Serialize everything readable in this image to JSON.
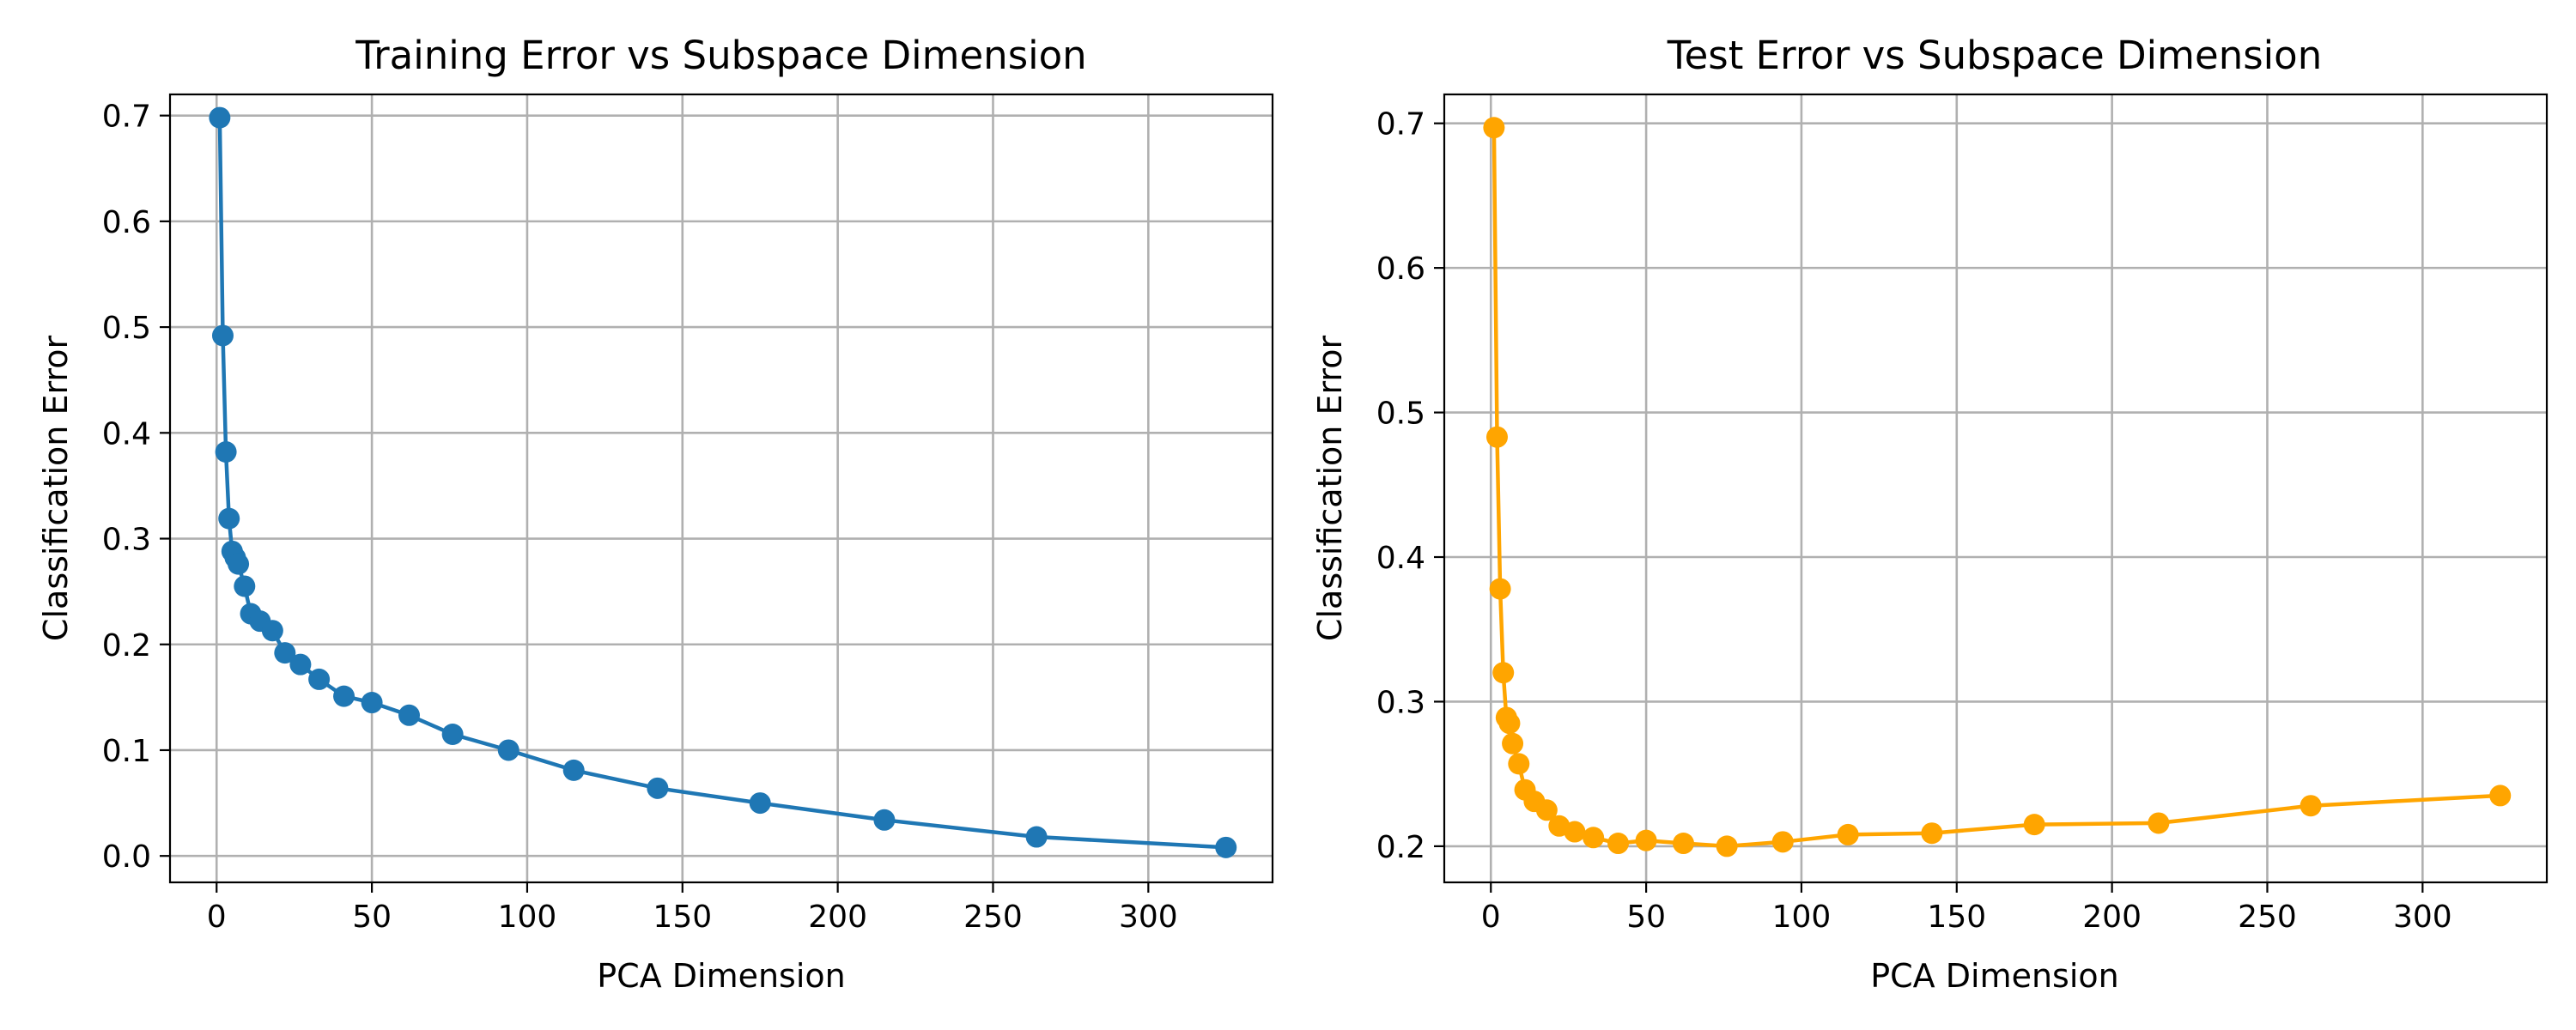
{
  "chart_data": [
    {
      "type": "line",
      "title": "Training Error vs Subspace Dimension",
      "xlabel": "PCA Dimension",
      "ylabel": "Classification Error",
      "xlim": [
        -15,
        340
      ],
      "ylim": [
        -0.025,
        0.72
      ],
      "xticks": [
        0,
        50,
        100,
        150,
        200,
        250,
        300
      ],
      "yticks": [
        0.0,
        0.1,
        0.2,
        0.3,
        0.4,
        0.5,
        0.6,
        0.7
      ],
      "ytick_decimals": 1,
      "grid": true,
      "color": "#1f77b4",
      "series": [
        {
          "x": [
            1,
            2,
            3,
            4,
            5,
            6,
            7,
            9,
            11,
            14,
            18,
            22,
            27,
            33,
            41,
            50,
            62,
            76,
            94,
            115,
            142,
            175,
            215,
            264,
            325
          ],
          "y": [
            0.698,
            0.492,
            0.382,
            0.319,
            0.288,
            0.282,
            0.276,
            0.255,
            0.229,
            0.222,
            0.213,
            0.192,
            0.181,
            0.167,
            0.151,
            0.145,
            0.133,
            0.115,
            0.1,
            0.081,
            0.064,
            0.05,
            0.034,
            0.018,
            0.008
          ]
        }
      ]
    },
    {
      "type": "line",
      "title": "Test Error vs Subspace Dimension",
      "xlabel": "PCA Dimension",
      "ylabel": "Classification Error",
      "xlim": [
        -15,
        340
      ],
      "ylim": [
        0.175,
        0.72
      ],
      "xticks": [
        0,
        50,
        100,
        150,
        200,
        250,
        300
      ],
      "yticks": [
        0.2,
        0.3,
        0.4,
        0.5,
        0.6,
        0.7
      ],
      "ytick_decimals": 1,
      "grid": true,
      "color": "#ffa500",
      "series": [
        {
          "x": [
            1,
            2,
            3,
            4,
            5,
            6,
            7,
            9,
            11,
            14,
            18,
            22,
            27,
            33,
            41,
            50,
            62,
            76,
            94,
            115,
            142,
            175,
            215,
            264,
            325
          ],
          "y": [
            0.697,
            0.483,
            0.378,
            0.32,
            0.289,
            0.285,
            0.271,
            0.257,
            0.239,
            0.231,
            0.225,
            0.214,
            0.21,
            0.206,
            0.202,
            0.204,
            0.202,
            0.2,
            0.203,
            0.208,
            0.209,
            0.215,
            0.216,
            0.228,
            0.235
          ]
        }
      ]
    }
  ]
}
